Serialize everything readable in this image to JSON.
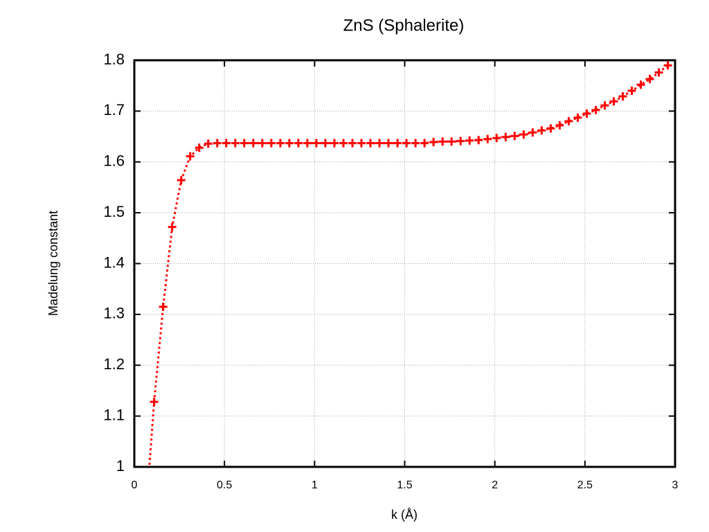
{
  "chart_data": {
    "type": "line",
    "title": "ZnS (Sphalerite)",
    "x_label": "k (Å)",
    "y_label": "Madelung constant",
    "color": "#ff0000",
    "grid": true,
    "x": [
      0.06,
      0.11,
      0.16,
      0.21,
      0.26,
      0.31,
      0.36,
      0.41,
      0.46,
      0.51,
      0.56,
      0.61,
      0.66,
      0.71,
      0.76,
      0.81,
      0.86,
      0.91,
      0.96,
      1.01,
      1.06,
      1.11,
      1.16,
      1.21,
      1.26,
      1.31,
      1.36,
      1.41,
      1.46,
      1.51,
      1.56,
      1.61,
      1.66,
      1.71,
      1.76,
      1.81,
      1.86,
      1.91,
      1.96,
      2.01,
      2.06,
      2.11,
      2.16,
      2.21,
      2.26,
      2.31,
      2.36,
      2.41,
      2.46,
      2.51,
      2.56,
      2.61,
      2.66,
      2.71,
      2.76,
      2.81,
      2.86,
      2.91,
      2.96
    ],
    "values": [
      0.89,
      1.128,
      1.315,
      1.472,
      1.564,
      1.611,
      1.628,
      1.636,
      1.637,
      1.637,
      1.637,
      1.637,
      1.637,
      1.637,
      1.637,
      1.637,
      1.637,
      1.637,
      1.637,
      1.637,
      1.637,
      1.637,
      1.637,
      1.637,
      1.637,
      1.637,
      1.637,
      1.637,
      1.637,
      1.637,
      1.637,
      1.637,
      1.639,
      1.64,
      1.64,
      1.641,
      1.642,
      1.643,
      1.645,
      1.647,
      1.649,
      1.651,
      1.654,
      1.658,
      1.662,
      1.666,
      1.672,
      1.68,
      1.687,
      1.695,
      1.702,
      1.711,
      1.719,
      1.729,
      1.74,
      1.752,
      1.763,
      1.776,
      1.79
    ],
    "xlim": [
      0,
      3
    ],
    "ylim": [
      1,
      1.8
    ],
    "xticks": [
      0,
      0.5,
      1,
      1.5,
      2,
      2.5,
      3
    ],
    "yticks": [
      1,
      1.1,
      1.2,
      1.3,
      1.4,
      1.5,
      1.6,
      1.7,
      1.8
    ]
  }
}
